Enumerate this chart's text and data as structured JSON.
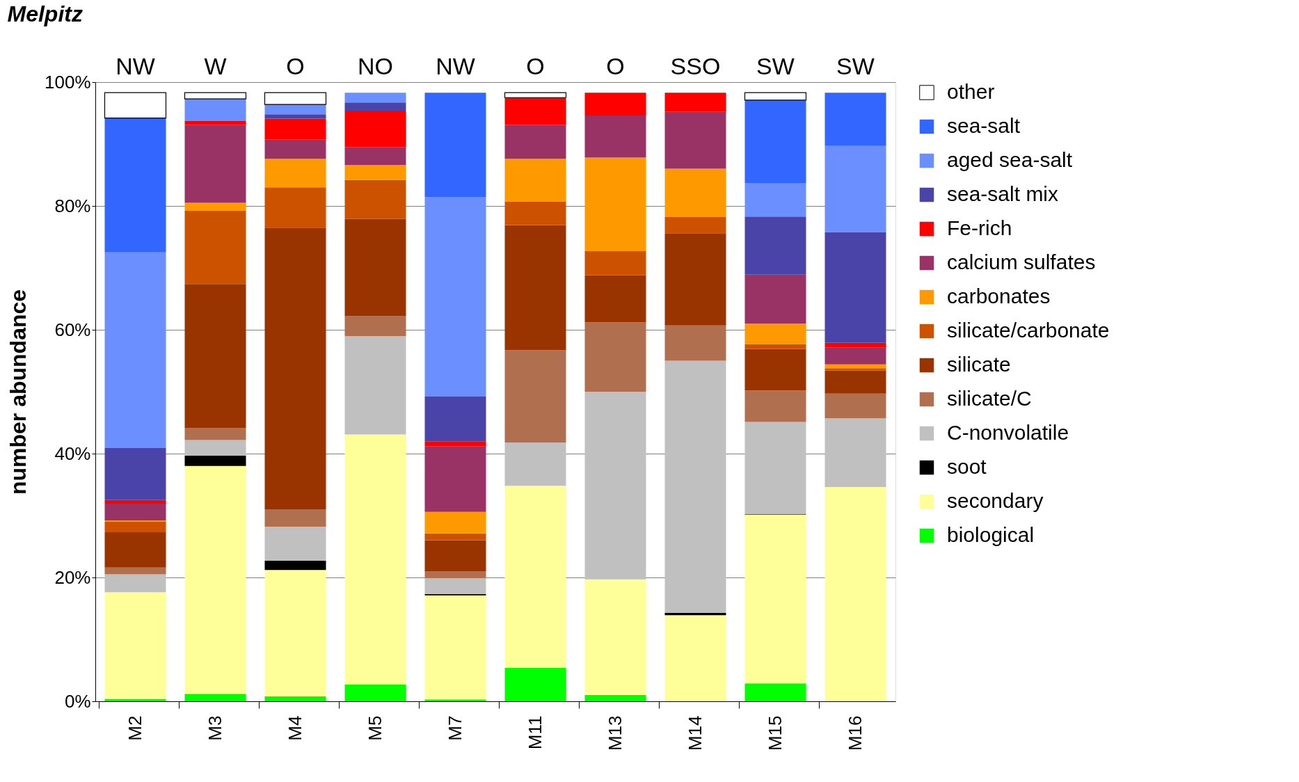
{
  "chart_data": {
    "type": "bar",
    "stacked": true,
    "title": "Melpitz",
    "ylabel": "number abundance",
    "categories": [
      "M2",
      "M3",
      "M4",
      "M5",
      "M7",
      "M11",
      "M13",
      "M14",
      "M15",
      "M16"
    ],
    "annotations": [
      "NW",
      "W",
      "O",
      "NO",
      "NW",
      "O",
      "O",
      "SSO",
      "SW",
      "SW"
    ],
    "series": [
      {
        "name": "biological",
        "color": "#00ff00",
        "values": [
          0.4,
          1.2,
          0.8,
          2.7,
          0.3,
          5.4,
          1.0,
          0,
          2.9,
          0
        ]
      },
      {
        "name": "secondary",
        "color": "#ffff99",
        "values": [
          17.2,
          36.8,
          20.4,
          40.4,
          16.8,
          29.4,
          18.7,
          13.9,
          27.2,
          34.6
        ]
      },
      {
        "name": "soot",
        "color": "#000000",
        "values": [
          0,
          1.7,
          1.5,
          0,
          0.2,
          0,
          0,
          0.4,
          0.1,
          0
        ]
      },
      {
        "name": "C-nonvolatile",
        "color": "#c0c0c0",
        "values": [
          2.9,
          2.5,
          5.5,
          15.9,
          2.6,
          7.0,
          30.3,
          40.7,
          14.9,
          11.1
        ]
      },
      {
        "name": "silicate/C",
        "color": "#b07050",
        "values": [
          1.1,
          1.9,
          2.8,
          3.2,
          1.1,
          14.9,
          11.2,
          5.7,
          5.1,
          4.0
        ]
      },
      {
        "name": "silicate",
        "color": "#993300",
        "values": [
          5.7,
          23.3,
          45.5,
          15.7,
          5.0,
          20.2,
          7.6,
          14.9,
          6.7,
          3.7
        ]
      },
      {
        "name": "silicate/carbonate",
        "color": "#cc5200",
        "values": [
          1.7,
          11.8,
          6.5,
          6.3,
          1.1,
          3.8,
          3.9,
          2.6,
          0.8,
          0.4
        ]
      },
      {
        "name": "carbonates",
        "color": "#ff9900",
        "values": [
          0.2,
          1.3,
          4.6,
          2.4,
          3.5,
          6.9,
          15.1,
          7.8,
          3.3,
          0.6
        ]
      },
      {
        "name": "calcium sulfates",
        "color": "#993366",
        "values": [
          2.7,
          12.6,
          3.1,
          2.9,
          10.6,
          5.5,
          6.8,
          9.2,
          7.9,
          2.7
        ]
      },
      {
        "name": "Fe-rich",
        "color": "#ff0000",
        "values": [
          0.6,
          0.6,
          3.4,
          5.9,
          0.8,
          4.4,
          3.7,
          3.1,
          0,
          0.8
        ]
      },
      {
        "name": "sea-salt mix",
        "color": "#4a44a8",
        "values": [
          8.4,
          0,
          0.7,
          1.3,
          7.2,
          0,
          0,
          0,
          9.4,
          17.9
        ]
      },
      {
        "name": "aged sea-salt",
        "color": "#6b8fff",
        "values": [
          31.6,
          3.6,
          1.6,
          1.6,
          32.2,
          0,
          0,
          0,
          5.4,
          13.9
        ]
      },
      {
        "name": "sea-salt",
        "color": "#3366ff",
        "values": [
          21.7,
          0,
          0,
          0,
          16.9,
          0,
          0,
          0,
          13.4,
          8.6
        ]
      },
      {
        "name": "other",
        "color": "#ffffff",
        "values": [
          4.1,
          1.0,
          1.9,
          0,
          0,
          0.8,
          0,
          0,
          1.2,
          0
        ]
      }
    ],
    "ylim": [
      0,
      100
    ],
    "yticks": [
      {
        "value": 0,
        "label": "0%"
      },
      {
        "value": 20,
        "label": "20%"
      },
      {
        "value": 40,
        "label": "40%"
      },
      {
        "value": 60,
        "label": "60%"
      },
      {
        "value": 80,
        "label": "80%"
      },
      {
        "value": 100,
        "label": "100%"
      }
    ],
    "grid": "y",
    "legend": "right"
  }
}
